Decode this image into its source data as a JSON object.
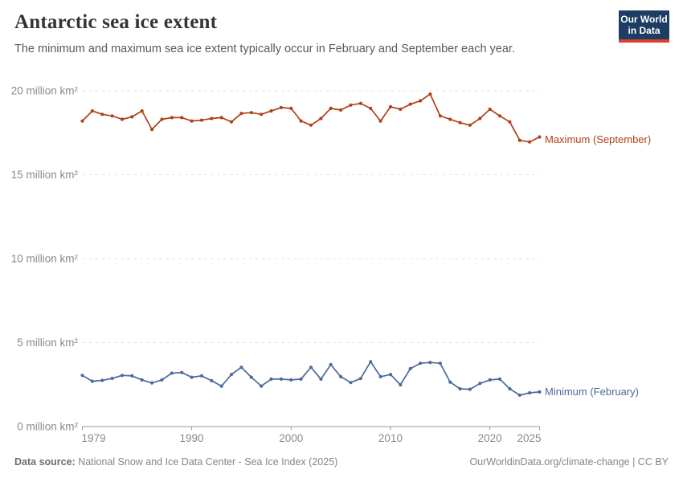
{
  "header": {
    "title": "Antarctic sea ice extent",
    "subtitle": "The minimum and maximum sea ice extent typically occur in February and September each year."
  },
  "logo": {
    "line1": "Our World",
    "line2": "in Data",
    "bg_color": "#1d3d63",
    "bar_color": "#dc3f2e"
  },
  "footer": {
    "source_label": "Data source:",
    "source_text": " National Snow and Ice Data Center - Sea Ice Index (2025)",
    "link_text": "OurWorldinData.org/climate-change | CC BY"
  },
  "chart_data": {
    "type": "line",
    "title": "Antarctic sea ice extent",
    "xlabel": "",
    "ylabel": "million km²",
    "xlim": [
      1979,
      2025
    ],
    "ylim": [
      0,
      20
    ],
    "grid": "dashed-horizontal",
    "legend_position": "right-of-line-ends",
    "x_ticks": [
      1979,
      1990,
      2000,
      2010,
      2020,
      2025
    ],
    "y_ticks": [
      {
        "value": 20,
        "label": "20 million km²"
      },
      {
        "value": 15,
        "label": "15 million km²"
      },
      {
        "value": 10,
        "label": "10 million km²"
      },
      {
        "value": 5,
        "label": "5 million km²"
      },
      {
        "value": 0,
        "label": "0 million km²"
      }
    ],
    "x": [
      1979,
      1980,
      1981,
      1982,
      1983,
      1984,
      1985,
      1986,
      1987,
      1988,
      1989,
      1990,
      1991,
      1992,
      1993,
      1994,
      1995,
      1996,
      1997,
      1998,
      1999,
      2000,
      2001,
      2002,
      2003,
      2004,
      2005,
      2006,
      2007,
      2008,
      2009,
      2010,
      2011,
      2012,
      2013,
      2014,
      2015,
      2016,
      2017,
      2018,
      2019,
      2020,
      2021,
      2022,
      2023,
      2024,
      2025
    ],
    "series": [
      {
        "id": "maximum",
        "name": "Maximum (September)",
        "color": "#b04018",
        "values": [
          18.2,
          18.8,
          18.6,
          18.5,
          18.3,
          18.45,
          18.8,
          17.7,
          18.3,
          18.4,
          18.4,
          18.2,
          18.25,
          18.35,
          18.4,
          18.15,
          18.65,
          18.7,
          18.6,
          18.8,
          19.0,
          18.95,
          18.2,
          17.95,
          18.35,
          18.95,
          18.85,
          19.15,
          19.25,
          18.95,
          18.2,
          19.05,
          18.9,
          19.2,
          19.4,
          19.8,
          18.5,
          18.3,
          18.1,
          17.95,
          18.35,
          18.9,
          18.5,
          18.15,
          17.05,
          16.95,
          17.25
        ]
      },
      {
        "id": "minimum",
        "name": "Minimum (February)",
        "color": "#4c6a9c",
        "values": [
          3.05,
          2.7,
          2.75,
          2.87,
          3.05,
          3.02,
          2.78,
          2.6,
          2.78,
          3.18,
          3.22,
          2.94,
          3.02,
          2.73,
          2.41,
          3.1,
          3.53,
          2.94,
          2.41,
          2.83,
          2.83,
          2.78,
          2.83,
          3.53,
          2.83,
          3.69,
          2.97,
          2.62,
          2.86,
          3.86,
          2.97,
          3.1,
          2.49,
          3.45,
          3.77,
          3.82,
          3.77,
          2.65,
          2.25,
          2.22,
          2.57,
          2.78,
          2.83,
          2.25,
          1.87,
          2.01,
          2.06
        ]
      }
    ]
  }
}
